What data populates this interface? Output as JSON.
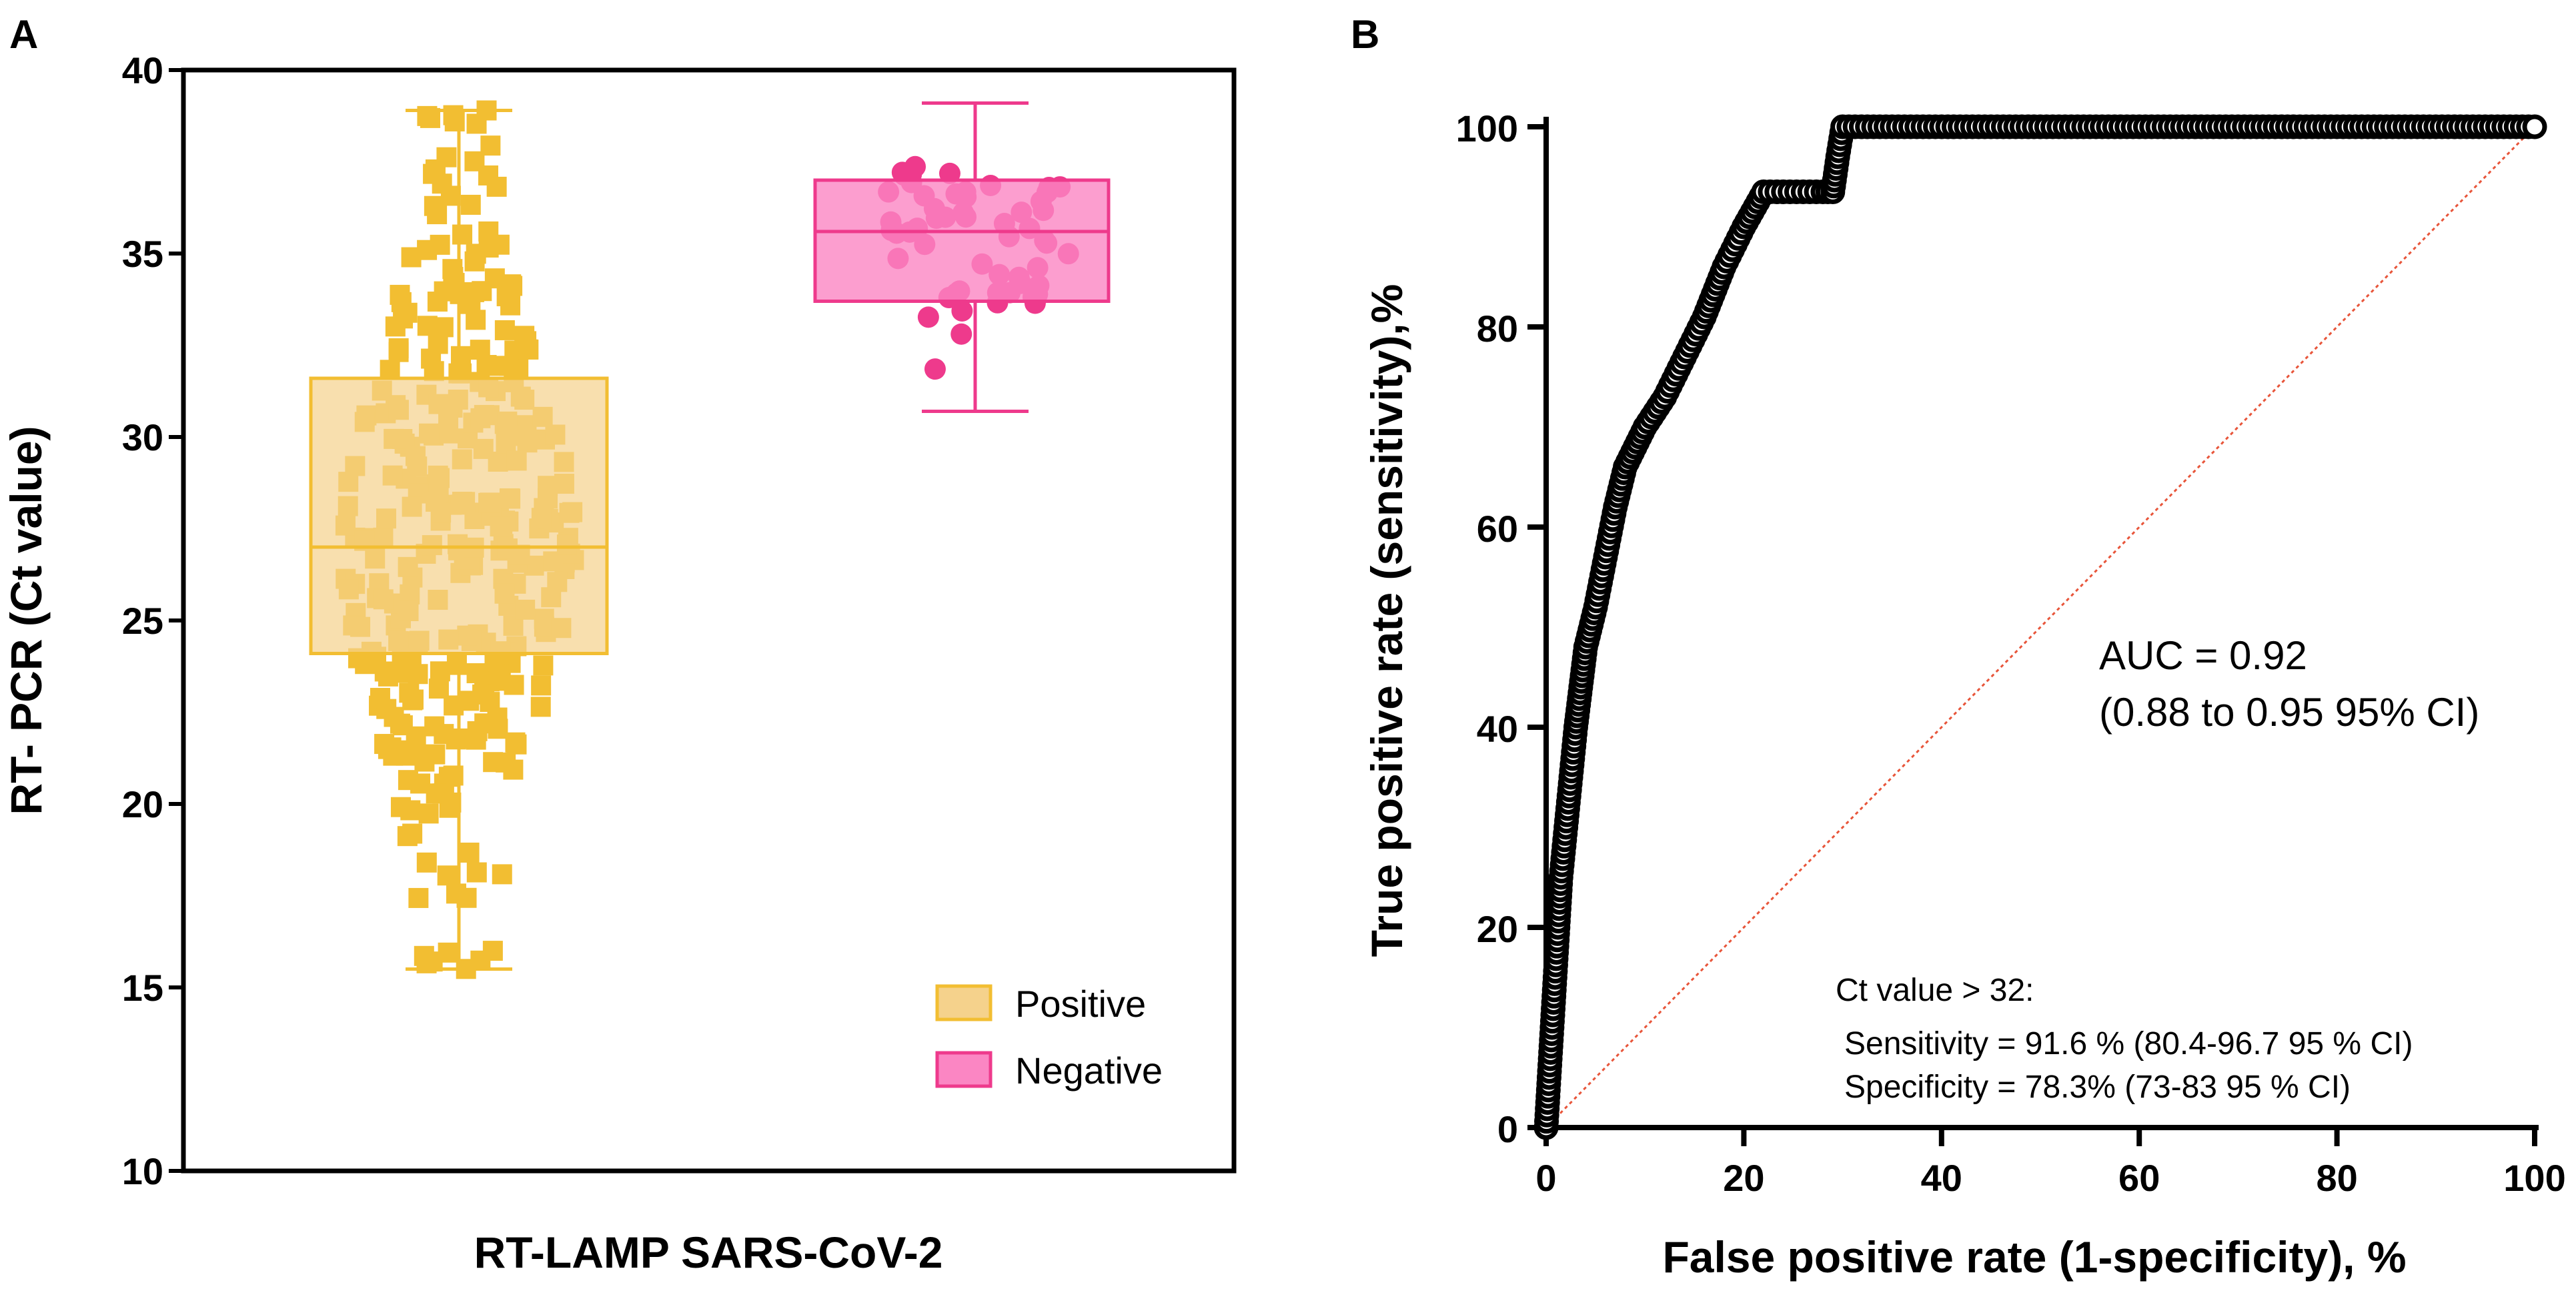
{
  "chart_data": [
    {
      "type": "box",
      "panel_label": "A",
      "title": "",
      "xlabel": "RT-LAMP SARS-CoV-2",
      "ylabel": "RT- PCR (Ct value)",
      "ylim": [
        10,
        40
      ],
      "yticks": [
        10,
        15,
        20,
        25,
        30,
        35,
        40
      ],
      "legend": {
        "position": "bottom-right",
        "entries": [
          "Positive",
          "Negative"
        ]
      },
      "series": [
        {
          "name": "Positive",
          "color": "#F2BE32",
          "fill": "#F5D28C",
          "marker": "square",
          "min": 15.5,
          "q1": 24.1,
          "median": 27.0,
          "q3": 31.6,
          "max": 38.9,
          "n_points": 320
        },
        {
          "name": "Negative",
          "color": "#EE3A8C",
          "fill": "#FB86C3",
          "marker": "circle",
          "min": 30.7,
          "q1": 33.7,
          "median": 35.6,
          "q3": 37.0,
          "max": 39.1,
          "n_points": 55
        }
      ]
    },
    {
      "type": "line",
      "panel_label": "B",
      "title": "",
      "xlabel": "False positive rate (1-specificity), %",
      "ylabel": "True positive rate (sensitivity),%",
      "xlim": [
        0,
        100
      ],
      "ylim": [
        0,
        100
      ],
      "xticks": [
        0,
        20,
        40,
        60,
        80,
        100
      ],
      "yticks": [
        0,
        20,
        40,
        60,
        80,
        100
      ],
      "series": [
        {
          "name": "ROC",
          "color": "#000000",
          "marker": "open-circle",
          "x": [
            0,
            0.3,
            0.6,
            0.9,
            1.2,
            1.5,
            2.0,
            2.5,
            3.0,
            3.5,
            4.0,
            5.0,
            6.0,
            7.0,
            8.0,
            9.0,
            10.0,
            12.0,
            14.0,
            16.0,
            18.0,
            20.0,
            22.0,
            24.0,
            26.0,
            28.0,
            29.0,
            29.5,
            30.0,
            35.0,
            40.0,
            50.0,
            60.0,
            70.0,
            80.0,
            90.0,
            100.0
          ],
          "y": [
            0,
            5,
            10,
            15,
            20,
            25,
            30,
            35,
            40,
            44,
            48,
            52,
            57,
            62,
            66,
            68,
            70,
            73,
            77,
            81,
            86,
            90,
            93.5,
            93.5,
            93.5,
            93.5,
            93.5,
            97,
            100,
            100,
            100,
            100,
            100,
            100,
            100,
            100,
            100
          ]
        },
        {
          "name": "Reference",
          "color": "#E8553A",
          "style": "dotted",
          "x": [
            0,
            100
          ],
          "y": [
            0,
            100
          ]
        }
      ],
      "annotations": {
        "auc": "AUC = 0.92",
        "auc_ci": "(0.88 to 0.95 95% CI)",
        "ct_title": "Ct value > 32:",
        "sensitivity": "Sensitivity = 91.6 % (80.4-96.7 95 % CI)",
        "specificity": "Specificity = 78.3% (73-83 95 % CI)"
      }
    }
  ]
}
